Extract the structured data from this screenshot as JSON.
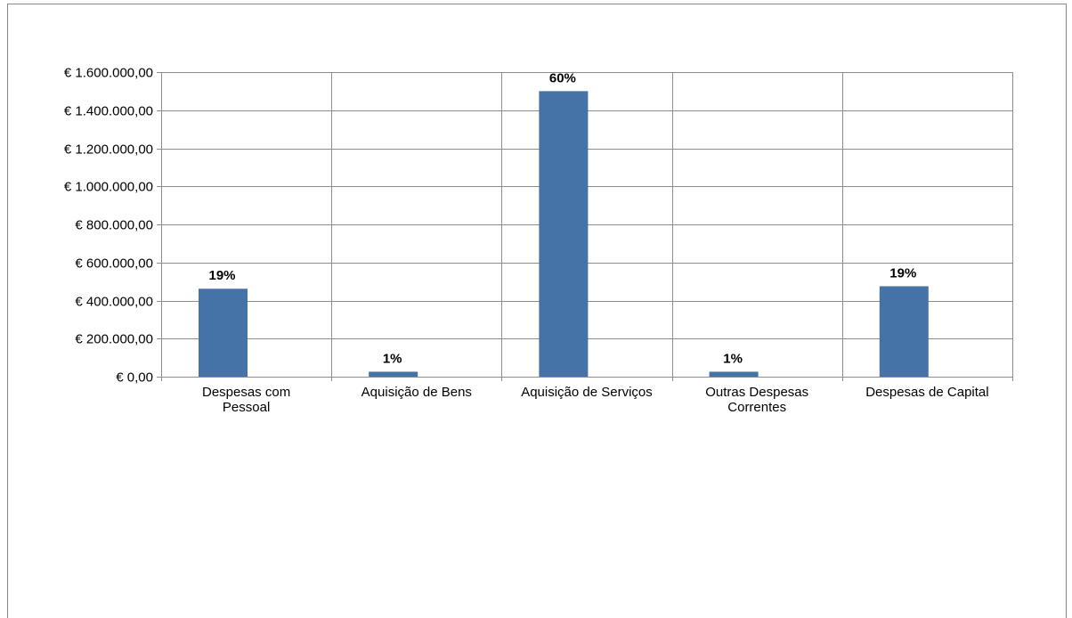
{
  "chart_data": {
    "type": "bar",
    "title": "",
    "xlabel": "",
    "ylabel": "",
    "categories": [
      [
        "Despesas com",
        "Pessoal"
      ],
      [
        "Aquisição de Bens"
      ],
      [
        "Aquisição de Serviços"
      ],
      [
        "Outras Despesas",
        "Correntes"
      ],
      [
        "Despesas de Capital"
      ]
    ],
    "series": [
      {
        "values": [
          462000,
          26000,
          1500000,
          26000,
          475000
        ],
        "data_labels": [
          "19%",
          "1%",
          "60%",
          "1%",
          "19%"
        ],
        "color": "#4572A7"
      }
    ],
    "ylim": [
      0,
      1600000
    ],
    "y_ticks": [
      {
        "value": 0,
        "label": "€ 0,00"
      },
      {
        "value": 200000,
        "label": "€ 200.000,00"
      },
      {
        "value": 400000,
        "label": "€ 400.000,00"
      },
      {
        "value": 600000,
        "label": "€ 600.000,00"
      },
      {
        "value": 800000,
        "label": "€ 800.000,00"
      },
      {
        "value": 1000000,
        "label": "€ 1.000.000,00"
      },
      {
        "value": 1200000,
        "label": "€ 1.200.000,00"
      },
      {
        "value": 1400000,
        "label": "€ 1.400.000,00"
      },
      {
        "value": 1600000,
        "label": "€ 1.600.000,00"
      }
    ],
    "grid": true,
    "legend": "none",
    "gridline_color": "#8C8C8C",
    "axis_color": "#8C8C8C"
  }
}
